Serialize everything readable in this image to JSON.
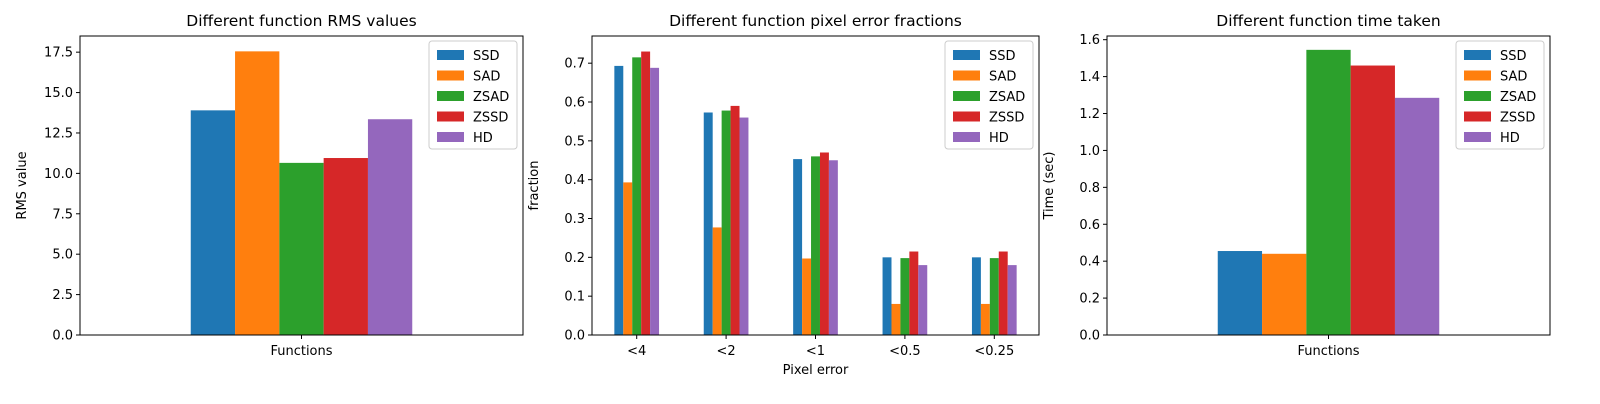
{
  "colors": {
    "SSD": "#1f77b4",
    "SAD": "#ff7f0e",
    "ZSAD": "#2ca02c",
    "ZSSD": "#d62728",
    "HD": "#9467bd"
  },
  "chart_data": [
    {
      "type": "bar",
      "title": "Different function RMS values",
      "xlabel": "",
      "ylabel": "RMS value",
      "categories": [
        "Functions"
      ],
      "ylim": [
        0,
        18.5
      ],
      "yticks": [
        "0.0",
        "2.5",
        "5.0",
        "7.5",
        "10.0",
        "12.5",
        "15.0",
        "17.5"
      ],
      "legend": "top-right",
      "series": [
        {
          "name": "SSD",
          "values": [
            13.9
          ]
        },
        {
          "name": "SAD",
          "values": [
            17.55
          ]
        },
        {
          "name": "ZSAD",
          "values": [
            10.65
          ]
        },
        {
          "name": "ZSSD",
          "values": [
            10.95
          ]
        },
        {
          "name": "HD",
          "values": [
            13.35
          ]
        }
      ]
    },
    {
      "type": "bar",
      "title": "Different function pixel error fractions",
      "xlabel": "Pixel error",
      "ylabel": "fraction",
      "categories": [
        "<4",
        "<2",
        "<1",
        "<0.5",
        "<0.25"
      ],
      "ylim": [
        0,
        0.77
      ],
      "yticks": [
        "0.0",
        "0.1",
        "0.2",
        "0.3",
        "0.4",
        "0.5",
        "0.6",
        "0.7"
      ],
      "legend": "top-right",
      "series": [
        {
          "name": "SSD",
          "values": [
            0.693,
            0.573,
            0.453,
            0.2,
            0.2
          ]
        },
        {
          "name": "SAD",
          "values": [
            0.393,
            0.277,
            0.197,
            0.08,
            0.08
          ]
        },
        {
          "name": "ZSAD",
          "values": [
            0.715,
            0.578,
            0.46,
            0.198,
            0.198
          ]
        },
        {
          "name": "ZSSD",
          "values": [
            0.73,
            0.59,
            0.47,
            0.215,
            0.215
          ]
        },
        {
          "name": "HD",
          "values": [
            0.688,
            0.56,
            0.45,
            0.18,
            0.18
          ]
        }
      ]
    },
    {
      "type": "bar",
      "title": "Different function time taken",
      "xlabel": "",
      "ylabel": "Time (sec)",
      "categories": [
        "Functions"
      ],
      "ylim": [
        0,
        1.62
      ],
      "yticks": [
        "0.0",
        "0.2",
        "0.4",
        "0.6",
        "0.8",
        "1.0",
        "1.2",
        "1.4",
        "1.6"
      ],
      "legend": "top-right",
      "series": [
        {
          "name": "SSD",
          "values": [
            0.455
          ]
        },
        {
          "name": "SAD",
          "values": [
            0.44
          ]
        },
        {
          "name": "ZSAD",
          "values": [
            1.545
          ]
        },
        {
          "name": "ZSSD",
          "values": [
            1.46
          ]
        },
        {
          "name": "HD",
          "values": [
            1.285
          ]
        }
      ]
    }
  ]
}
